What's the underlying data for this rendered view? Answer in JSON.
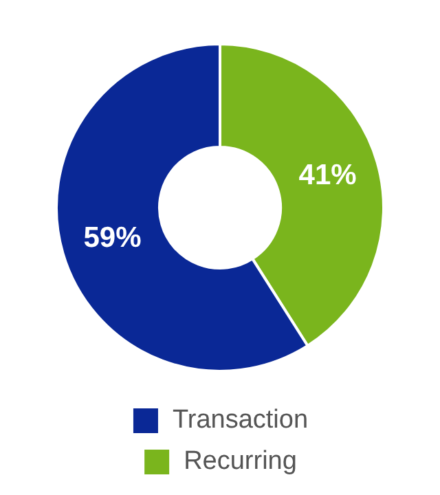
{
  "chart_data": {
    "type": "donut",
    "categories": [
      "Recurring",
      "Transaction"
    ],
    "values": [
      41,
      59
    ],
    "colors": [
      "#7ab51d",
      "#0a2896"
    ],
    "value_labels": [
      "41%",
      "59%"
    ],
    "legend": "bottom"
  }
}
